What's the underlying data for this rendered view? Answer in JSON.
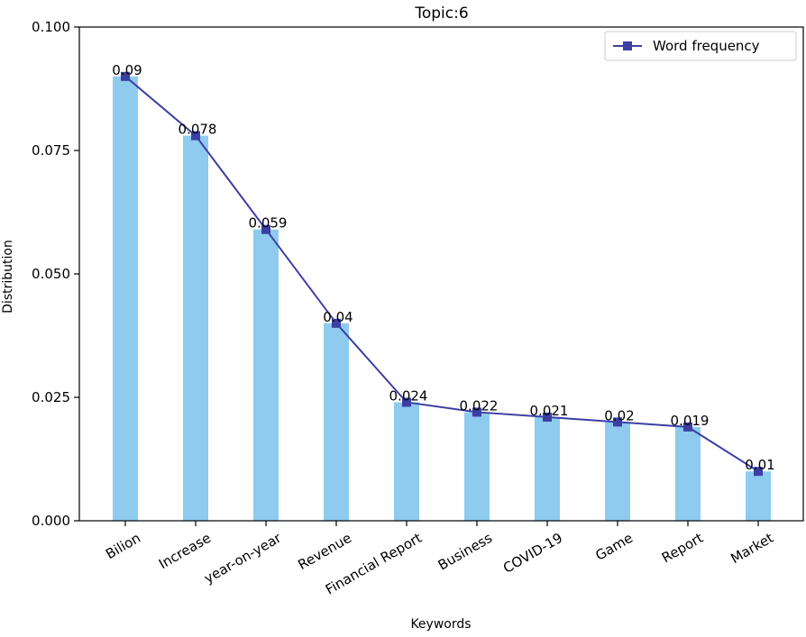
{
  "chart_data": {
    "type": "bar",
    "title": "Topic:6",
    "xlabel": "Keywords",
    "ylabel": "Distribution",
    "ylim": [
      0,
      0.1
    ],
    "yticks": [
      "0.000",
      "0.025",
      "0.050",
      "0.075",
      "0.100"
    ],
    "categories": [
      "Bilion",
      "Increase",
      "year-on-year",
      "Revenue",
      "Financial Report",
      "Business",
      "COVID-19",
      "Game",
      "Report",
      "Market"
    ],
    "values": [
      0.09,
      0.078,
      0.059,
      0.04,
      0.024,
      0.022,
      0.021,
      0.02,
      0.019,
      0.01
    ],
    "data_labels": [
      "0.09",
      "0.078",
      "0.059",
      "0.04",
      "0.024",
      "0.022",
      "0.021",
      "0.02",
      "0.019",
      "0.01"
    ],
    "series": [
      {
        "name": "Word frequency",
        "type": "line",
        "marker": "square",
        "values": [
          0.09,
          0.078,
          0.059,
          0.04,
          0.024,
          0.022,
          0.021,
          0.02,
          0.019,
          0.01
        ]
      }
    ],
    "legend": {
      "placement": "top-right",
      "entries": [
        "Word frequency"
      ]
    },
    "grid": false,
    "colors": {
      "bar": "#8ecbee",
      "line": "#3b3fa3"
    }
  }
}
